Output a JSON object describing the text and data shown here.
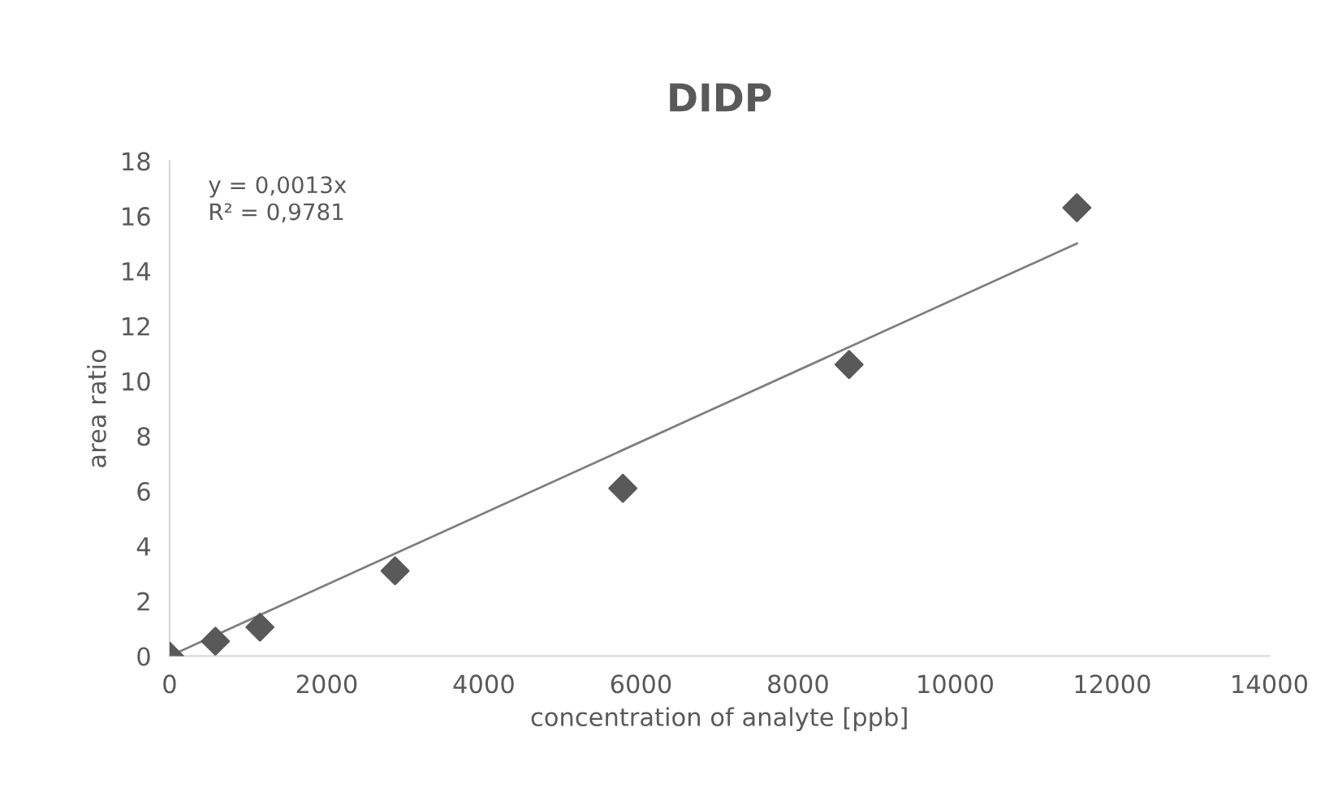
{
  "chart_data": {
    "type": "scatter",
    "title": "DIDP",
    "xlabel": "concentration of analyte [ppb]",
    "ylabel": "area ratio",
    "annotations": [
      "y = 0,0013x",
      "R² = 0,9781"
    ],
    "series": [
      {
        "color": "#595959",
        "marker": "diamond",
        "x": [
          0,
          583,
          1150,
          2870,
          5770,
          8650,
          11550
        ],
        "values": [
          0,
          0.54,
          1.05,
          3.1,
          6.1,
          10.6,
          16.3
        ]
      },
      {
        "type": "line",
        "color": "#7f7f7f",
        "line_style": "solid",
        "x": [
          0,
          11550
        ],
        "values": [
          0,
          15.0
        ]
      }
    ],
    "xlim": [
      0,
      14000
    ],
    "xticks": [
      0,
      2000,
      4000,
      6000,
      8000,
      10000,
      12000,
      14000
    ],
    "ylim": [
      0,
      18
    ],
    "yticks": [
      0,
      2,
      4,
      6,
      8,
      10,
      12,
      14,
      16,
      18
    ],
    "grid": false,
    "legend": false
  }
}
